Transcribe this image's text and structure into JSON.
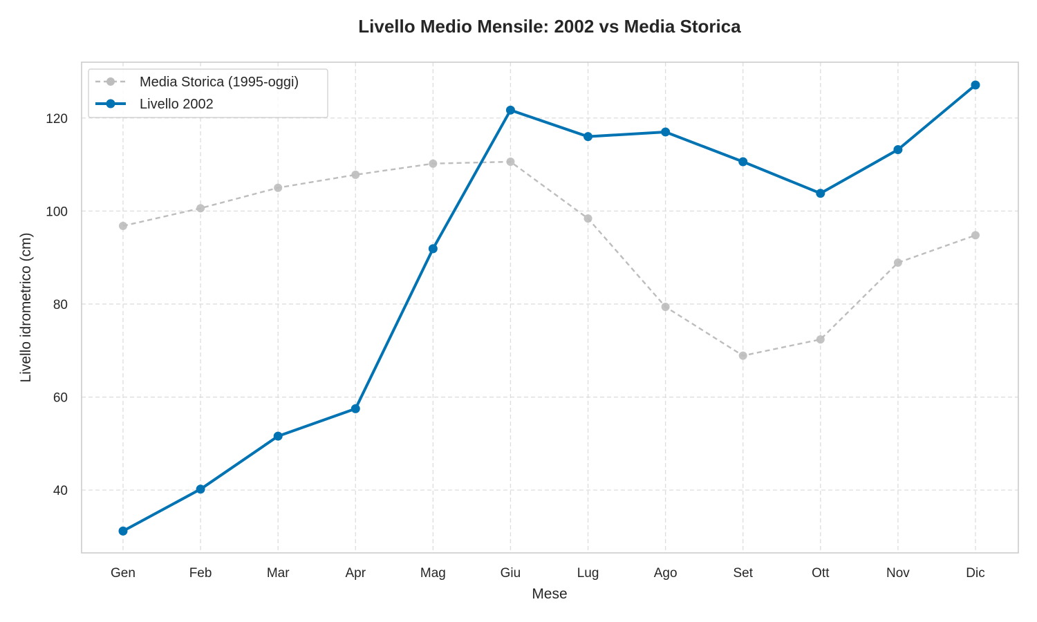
{
  "chart_data": {
    "type": "line",
    "title": "Livello Medio Mensile: 2002 vs Media Storica",
    "xlabel": "Mese",
    "ylabel": "Livello idrometrico (cm)",
    "categories": [
      "Gen",
      "Feb",
      "Mar",
      "Apr",
      "Mag",
      "Giu",
      "Lug",
      "Ago",
      "Set",
      "Ott",
      "Nov",
      "Dic"
    ],
    "ylim": [
      26.5,
      132
    ],
    "yticks": [
      40,
      60,
      80,
      100,
      120
    ],
    "grid": true,
    "legend_position": "top-left",
    "series": [
      {
        "name": "Media Storica (1995-oggi)",
        "style": "dashed",
        "color": "#bdbdbd",
        "values": [
          96.8,
          100.6,
          105.0,
          107.8,
          110.2,
          110.6,
          98.4,
          79.4,
          68.9,
          72.4,
          88.9,
          94.8
        ]
      },
      {
        "name": "Livello 2002",
        "style": "solid",
        "color": "#0173b2",
        "values": [
          31.2,
          40.2,
          51.6,
          57.5,
          91.9,
          121.7,
          116.0,
          117.0,
          110.6,
          103.8,
          113.2,
          127.1
        ]
      }
    ]
  }
}
